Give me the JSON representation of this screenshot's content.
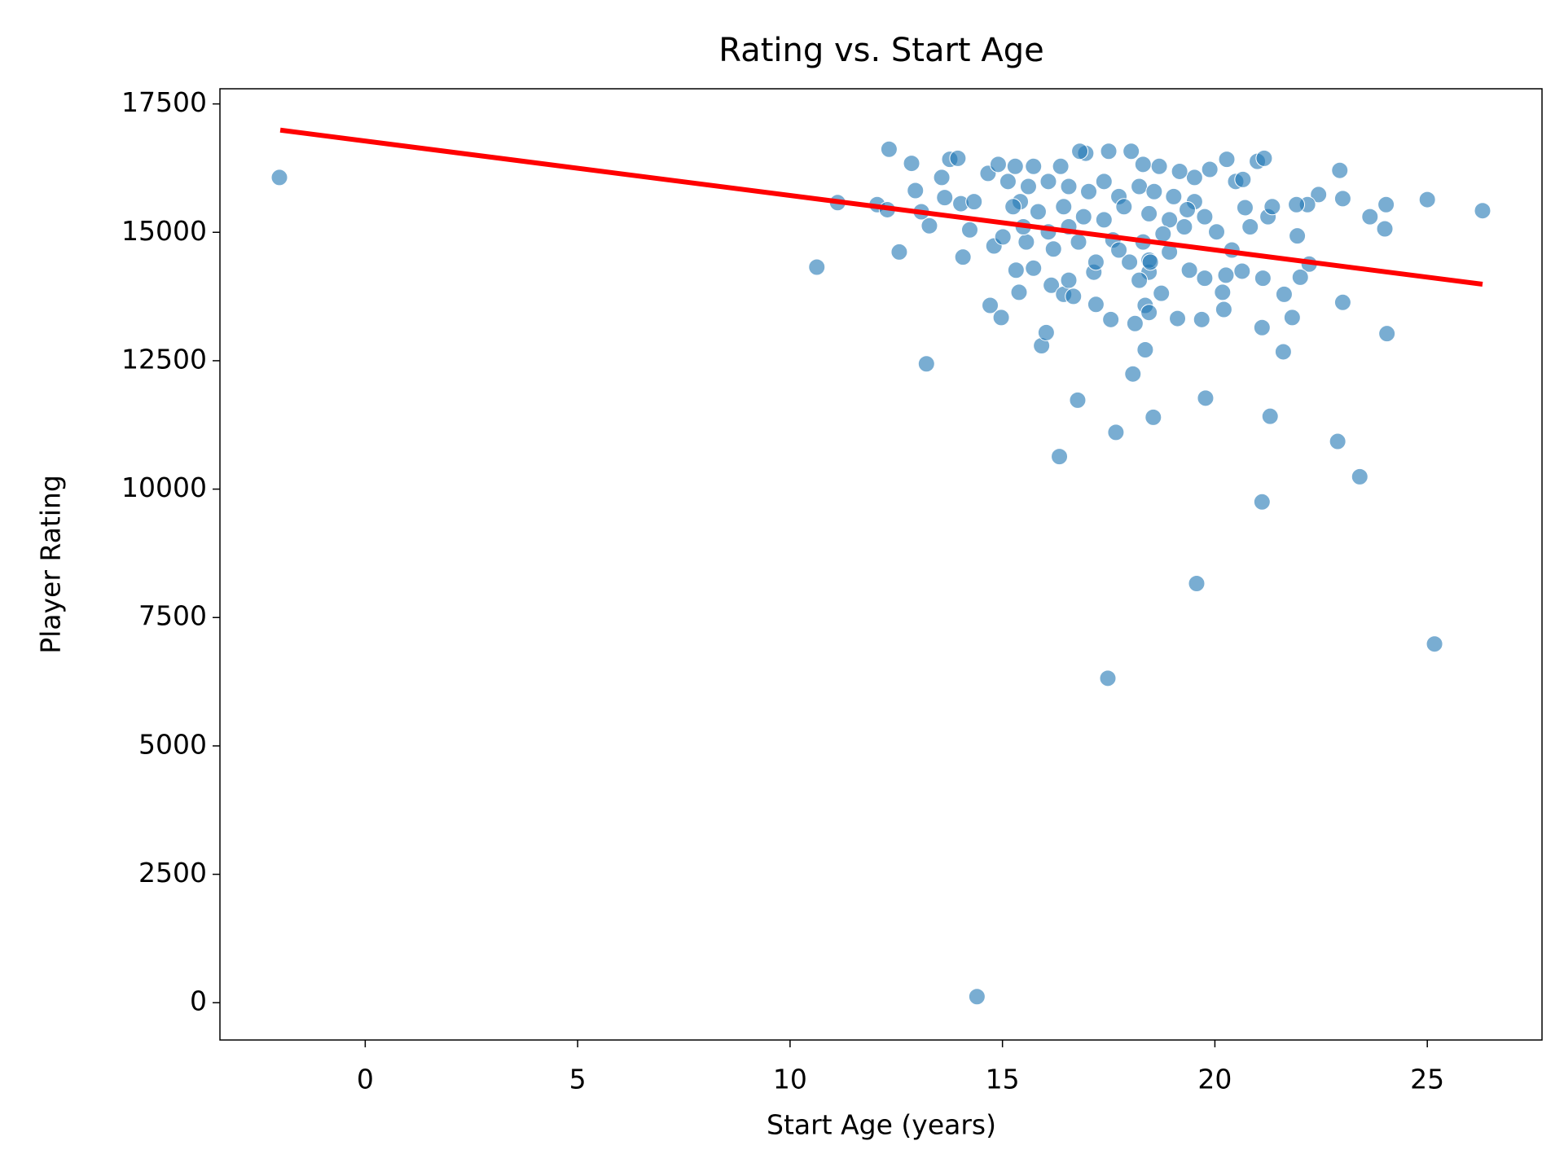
{
  "chart_data": {
    "type": "scatter",
    "title": "Rating vs. Start Age",
    "x_label": "Start Age (years)",
    "y_label": "Player Rating",
    "xlim": [
      -3.42,
      27.7
    ],
    "ylim": [
      -726,
      17795
    ],
    "xticks": [
      0,
      5,
      10,
      15,
      20,
      25
    ],
    "yticks": [
      0,
      2500,
      5000,
      7500,
      10000,
      12500,
      15000,
      17500
    ],
    "grid": false,
    "series": [
      {
        "color": "#1f77b4",
        "x": [
          -2.02,
          10.63,
          13.21,
          14.4,
          17.48,
          19.57,
          25.17,
          21.11,
          23.41,
          22.89,
          16.34,
          17.67,
          16.77,
          18.55,
          19.78,
          21.3,
          18.07,
          15.92,
          18.36,
          21.61,
          24.05,
          23.01,
          21.11,
          21.82,
          26.3,
          25.0,
          24.03,
          24.0,
          23.65,
          23.01,
          22.94,
          22.44,
          22.18,
          21.92,
          21.94,
          22.22,
          22.01,
          21.63,
          11.12,
          12.05,
          12.33,
          12.57,
          12.29,
          12.86,
          12.95,
          13.09,
          13.28,
          13.57,
          13.64,
          13.76,
          13.95,
          14.07,
          14.02,
          14.23,
          14.33,
          14.66,
          14.71,
          14.97,
          14.8,
          15.32,
          15.39,
          15.42,
          15.56,
          15.73,
          16.03,
          16.15,
          16.44,
          16.67,
          17.2,
          17.55,
          18.12,
          18.74,
          18.36,
          18.45,
          19.12,
          19.69,
          20.21,
          20.18,
          20.26,
          21.13,
          20.64,
          20.4,
          17.15,
          17.2,
          17.99,
          18.45,
          18.93,
          19.4,
          19.76,
          20.04,
          20.83,
          21.25,
          20.71,
          21.35,
          20.49,
          20.66,
          21.0,
          21.16,
          20.28,
          19.88,
          19.52,
          19.17,
          18.69,
          18.31,
          18.03,
          17.5,
          16.96,
          16.82,
          16.37,
          15.73,
          15.3,
          14.9,
          15.13,
          15.61,
          16.08,
          16.56,
          17.03,
          17.39,
          17.74,
          18.22,
          18.57,
          19.03,
          19.52,
          15.25,
          15.84,
          16.44,
          16.91,
          17.39,
          17.86,
          18.45,
          18.93,
          19.35,
          19.76,
          16.08,
          16.56,
          17.6,
          18.31,
          18.78,
          19.28,
          15.01,
          15.49,
          16.79,
          17.74,
          16.2,
          18.45,
          16.56,
          18.22,
          18.48
        ],
        "values": [
          16068,
          14322,
          12439,
          118,
          6317,
          8162,
          6985,
          9751,
          10241,
          10928,
          10634,
          11105,
          11732,
          11399,
          11772,
          11418,
          12242,
          12792,
          12713,
          12674,
          13027,
          13636,
          13145,
          13341,
          15421,
          15637,
          15539,
          15068,
          15303,
          15656,
          16206,
          15735,
          15539,
          15539,
          14930,
          14381,
          14126,
          13793,
          15578,
          15539,
          16618,
          14617,
          15441,
          16343,
          15813,
          15401,
          15127,
          16068,
          15676,
          16421,
          16441,
          14518,
          15558,
          15048,
          15597,
          16147,
          13577,
          13341,
          14734,
          14263,
          13832,
          15597,
          14812,
          14302,
          13048,
          13969,
          13793,
          13753,
          13596,
          13302,
          13224,
          13812,
          13577,
          13439,
          13322,
          13302,
          13498,
          13832,
          14165,
          14106,
          14244,
          14655,
          14224,
          14420,
          14420,
          14224,
          14617,
          14263,
          14106,
          15009,
          15107,
          15303,
          15480,
          15499,
          15990,
          16029,
          16382,
          16441,
          16421,
          16225,
          16068,
          16186,
          16284,
          16323,
          16578,
          16578,
          16539,
          16578,
          16284,
          16284,
          16284,
          16323,
          15990,
          15892,
          15990,
          15892,
          15793,
          15990,
          15696,
          15892,
          15793,
          15696,
          15597,
          15499,
          15401,
          15499,
          15303,
          15244,
          15499,
          15362,
          15244,
          15441,
          15303,
          15009,
          15107,
          14852,
          14812,
          14969,
          15107,
          14911,
          15107,
          14812,
          14655,
          14675,
          14459,
          14067,
          14067,
          14420
        ]
      }
    ],
    "trend_line": {
      "color": "#ff0000",
      "x": [
        -2.0,
        26.3
      ],
      "values": [
        16990,
        13989
      ]
    }
  }
}
